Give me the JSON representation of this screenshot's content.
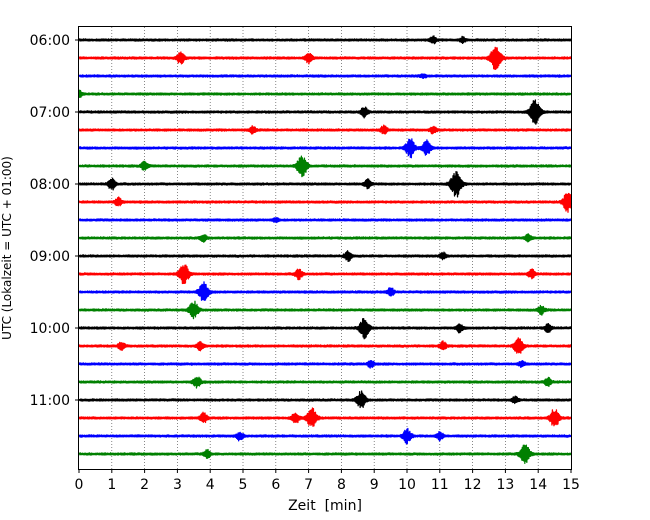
{
  "chart_data": {
    "type": "line",
    "title": "",
    "xlabel": "Zeit  [min]",
    "ylabel": "UTC (Lokalzeit = UTC + 01:00)",
    "xlim": [
      0,
      15
    ],
    "x_ticks": [
      0,
      1,
      2,
      3,
      4,
      5,
      6,
      7,
      8,
      9,
      10,
      11,
      12,
      13,
      14,
      15
    ],
    "x_tick_labels": [
      "0",
      "1",
      "2",
      "3",
      "4",
      "5",
      "6",
      "7",
      "8",
      "9",
      "10",
      "11",
      "12",
      "13",
      "14",
      "15"
    ],
    "y_tick_labels": [
      {
        "row": 0,
        "label": "06:00"
      },
      {
        "row": 4,
        "label": "07:00"
      },
      {
        "row": 8,
        "label": "08:00"
      },
      {
        "row": 12,
        "label": "09:00"
      },
      {
        "row": 16,
        "label": "10:00"
      },
      {
        "row": 20,
        "label": "11:00"
      }
    ],
    "grid": "vertical dotted",
    "trace_minutes": 15,
    "trace_colors": [
      "#000000",
      "#ff0000",
      "#0000ff",
      "#008000"
    ],
    "traces": [
      {
        "start": "06:00",
        "events": [
          [
            10.8,
            0.5
          ],
          [
            11.7,
            0.4
          ]
        ]
      },
      {
        "start": "06:15",
        "events": [
          [
            3.1,
            0.8
          ],
          [
            7.0,
            0.7
          ],
          [
            12.7,
            1.7
          ]
        ]
      },
      {
        "start": "06:30",
        "events": [
          [
            10.5,
            0.3
          ]
        ]
      },
      {
        "start": "06:45",
        "events": [
          [
            0.0,
            0.5
          ]
        ]
      },
      {
        "start": "07:00",
        "events": [
          [
            8.7,
            0.7
          ],
          [
            13.9,
            1.7
          ]
        ]
      },
      {
        "start": "07:15",
        "events": [
          [
            5.3,
            0.5
          ],
          [
            9.3,
            0.6
          ],
          [
            10.8,
            0.5
          ]
        ]
      },
      {
        "start": "07:30",
        "events": [
          [
            10.1,
            1.3
          ],
          [
            10.6,
            1.1
          ]
        ]
      },
      {
        "start": "07:45",
        "events": [
          [
            2.0,
            0.6
          ],
          [
            6.8,
            1.5
          ]
        ]
      },
      {
        "start": "08:00",
        "events": [
          [
            1.0,
            0.8
          ],
          [
            8.8,
            0.6
          ],
          [
            11.5,
            1.8
          ]
        ]
      },
      {
        "start": "08:15",
        "events": [
          [
            1.2,
            0.6
          ],
          [
            14.9,
            1.4
          ]
        ]
      },
      {
        "start": "08:30",
        "events": [
          [
            6.0,
            0.3
          ]
        ]
      },
      {
        "start": "08:45",
        "events": [
          [
            3.8,
            0.5
          ],
          [
            13.7,
            0.5
          ]
        ]
      },
      {
        "start": "09:00",
        "events": [
          [
            8.2,
            0.7
          ],
          [
            11.1,
            0.5
          ]
        ]
      },
      {
        "start": "09:15",
        "events": [
          [
            3.2,
            1.4
          ],
          [
            6.7,
            0.7
          ],
          [
            13.8,
            0.6
          ]
        ]
      },
      {
        "start": "09:30",
        "events": [
          [
            3.8,
            1.4
          ],
          [
            9.5,
            0.6
          ]
        ]
      },
      {
        "start": "09:45",
        "events": [
          [
            3.5,
            1.2
          ],
          [
            14.1,
            0.6
          ]
        ]
      },
      {
        "start": "10:00",
        "events": [
          [
            8.7,
            1.4
          ],
          [
            11.6,
            0.6
          ],
          [
            14.3,
            0.6
          ]
        ]
      },
      {
        "start": "10:15",
        "events": [
          [
            1.3,
            0.6
          ],
          [
            3.7,
            0.6
          ],
          [
            11.1,
            0.6
          ],
          [
            13.4,
            1.2
          ]
        ]
      },
      {
        "start": "10:30",
        "events": [
          [
            8.9,
            0.5
          ],
          [
            13.5,
            0.4
          ]
        ]
      },
      {
        "start": "10:45",
        "events": [
          [
            3.6,
            0.8
          ],
          [
            14.3,
            0.6
          ]
        ]
      },
      {
        "start": "11:00",
        "events": [
          [
            8.6,
            1.2
          ],
          [
            13.3,
            0.5
          ]
        ]
      },
      {
        "start": "11:15",
        "events": [
          [
            3.8,
            0.7
          ],
          [
            6.6,
            0.8
          ],
          [
            7.1,
            1.4
          ],
          [
            14.5,
            1.3
          ]
        ]
      },
      {
        "start": "11:30",
        "events": [
          [
            4.9,
            0.6
          ],
          [
            10.0,
            1.0
          ],
          [
            11.0,
            0.6
          ]
        ]
      },
      {
        "start": "11:45",
        "events": [
          [
            3.9,
            0.6
          ],
          [
            13.6,
            1.4
          ]
        ]
      }
    ]
  }
}
